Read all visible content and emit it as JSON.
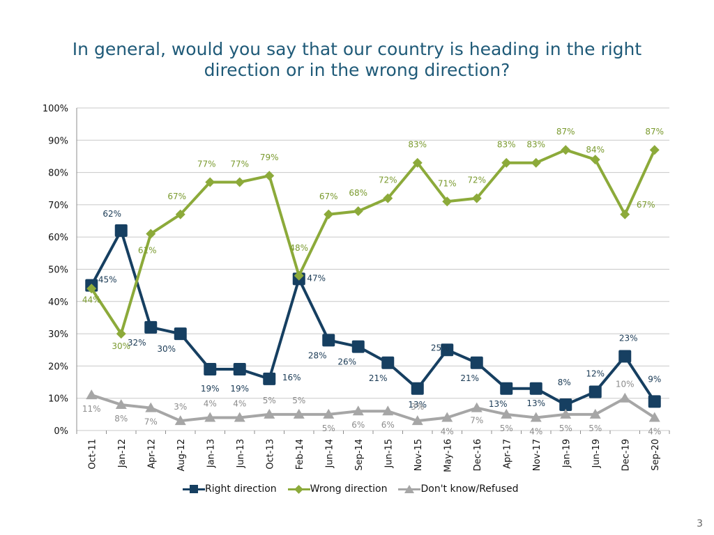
{
  "title": {
    "line1": "In general, would you say that our country is heading in the right",
    "line2": "direction or in the wrong direction?"
  },
  "page_number": "3",
  "chart_data": {
    "type": "line",
    "categories": [
      "Oct-11",
      "Jan-12",
      "Apr-12",
      "Aug-12",
      "Jan-13",
      "Jun-13",
      "Oct-13",
      "Feb-14",
      "Jun-14",
      "Sep-14",
      "Jun-15",
      "Nov-15",
      "May-16",
      "Dec-16",
      "Apr-17",
      "Nov-17",
      "Jan-19",
      "Jun-19",
      "Dec-19",
      "Sep-20"
    ],
    "ylim": [
      0,
      100
    ],
    "yticks": [
      "0%",
      "10%",
      "20%",
      "30%",
      "40%",
      "50%",
      "60%",
      "70%",
      "80%",
      "90%",
      "100%"
    ],
    "grid": true,
    "legend_position": "bottom",
    "series": [
      {
        "name": "Right direction",
        "color": "#163f61",
        "marker": "square",
        "values": [
          45,
          62,
          32,
          30,
          19,
          19,
          16,
          47,
          28,
          26,
          21,
          13,
          25,
          21,
          13,
          13,
          8,
          12,
          23,
          9
        ],
        "labels": [
          "45%",
          "62%",
          "32%",
          "30%",
          "19%",
          "19%",
          "16%",
          "47%",
          "28%",
          "26%",
          "21%",
          "13%",
          "25%",
          "21%",
          "13%",
          "13%",
          "8%",
          "12%",
          "23%",
          "9%"
        ]
      },
      {
        "name": "Wrong direction",
        "color": "#8caa3a",
        "marker": "diamond",
        "values": [
          44,
          30,
          61,
          67,
          77,
          77,
          79,
          48,
          67,
          68,
          72,
          83,
          71,
          72,
          83,
          83,
          87,
          84,
          67,
          87
        ],
        "labels": [
          "44%",
          "30%",
          "61%",
          "67%",
          "77%",
          "77%",
          "79%",
          "48%",
          "67%",
          "68%",
          "72%",
          "83%",
          "71%",
          "72%",
          "83%",
          "83%",
          "87%",
          "84%",
          "67%",
          "87%"
        ]
      },
      {
        "name": "Don't know/Refused",
        "color": "#a6a6a6",
        "marker": "triangle",
        "values": [
          11,
          8,
          7,
          3,
          4,
          4,
          5,
          5,
          5,
          6,
          6,
          3,
          4,
          7,
          5,
          4,
          5,
          5,
          10,
          4
        ],
        "labels": [
          "11%",
          "8%",
          "7%",
          "3%",
          "4%",
          "4%",
          "5%",
          "5%",
          "5%",
          "6%",
          "6%",
          "3%",
          "4%",
          "7%",
          "5%",
          "4%",
          "5%",
          "5%",
          "10%",
          "4%"
        ]
      }
    ]
  }
}
